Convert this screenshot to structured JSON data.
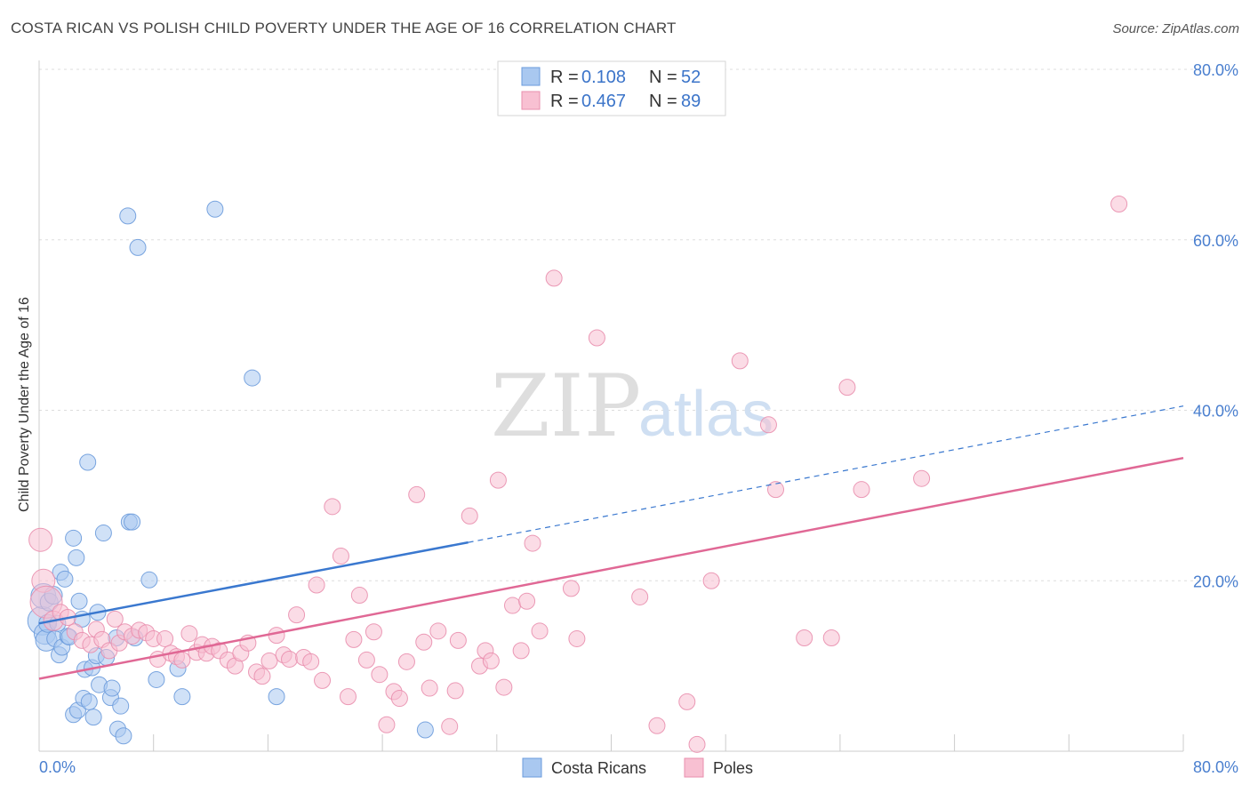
{
  "title": "COSTA RICAN VS POLISH CHILD POVERTY UNDER THE AGE OF 16 CORRELATION CHART",
  "source": "Source: ZipAtlas.com",
  "watermark": {
    "zip": "ZIP",
    "atlas": "atlas"
  },
  "legend": {
    "r_label": "R =",
    "n_label": "N =",
    "rows": [
      {
        "name": "Costa Ricans",
        "r": "0.108",
        "n": "52"
      },
      {
        "name": "Poles",
        "r": "0.467",
        "n": "89"
      }
    ]
  },
  "colors": {
    "costa_fill": "#a9c8f0",
    "costa_stroke": "#6b9bdc",
    "costa_line": "#3a78cf",
    "poles_fill": "#f8c0d2",
    "poles_stroke": "#e98fae",
    "poles_line": "#e06895",
    "axis_label": "#4a7fcf",
    "grid": "#dddddd"
  },
  "chart_data": {
    "type": "scatter",
    "title": "COSTA RICAN VS POLISH CHILD POVERTY UNDER THE AGE OF 16 CORRELATION CHART",
    "xlabel": "",
    "ylabel": "Child Poverty Under the Age of 16",
    "xlim": [
      0,
      80
    ],
    "ylim": [
      0,
      80
    ],
    "x_tick_labels": [
      "0.0%",
      "80.0%"
    ],
    "y_tick_labels": [
      {
        "value": 80,
        "label": "80.0%"
      },
      {
        "value": 60,
        "label": "60.0%"
      },
      {
        "value": 40,
        "label": "40.0%"
      },
      {
        "value": 20,
        "label": "20.0%"
      }
    ],
    "series": [
      {
        "name": "Costa Ricans",
        "r": 0.108,
        "n": 52,
        "trend": {
          "x": [
            0,
            30
          ],
          "y": [
            15.0,
            24.5
          ]
        },
        "trend_extension": {
          "x": [
            30,
            80
          ],
          "y": [
            24.5,
            40.5
          ]
        },
        "points": [
          [
            0.2,
            15.3,
            16
          ],
          [
            0.3,
            18.2,
            14
          ],
          [
            0.4,
            13.8,
            12
          ],
          [
            0.5,
            13.0,
            12
          ],
          [
            0.6,
            15.0,
            10
          ],
          [
            0.7,
            17.5,
            10
          ],
          [
            1.0,
            18.3,
            10
          ],
          [
            1.1,
            13.2,
            9
          ],
          [
            1.3,
            15.0,
            9
          ],
          [
            1.4,
            11.3,
            9
          ],
          [
            1.5,
            21.0,
            9
          ],
          [
            1.6,
            12.2,
            9
          ],
          [
            1.8,
            20.2,
            9
          ],
          [
            2.0,
            13.5,
            9
          ],
          [
            2.1,
            13.4,
            9
          ],
          [
            2.4,
            25.0,
            9
          ],
          [
            2.4,
            4.3,
            9
          ],
          [
            2.6,
            22.7,
            9
          ],
          [
            2.7,
            4.8,
            9
          ],
          [
            2.8,
            17.6,
            9
          ],
          [
            3.0,
            15.5,
            9
          ],
          [
            3.1,
            6.2,
            9
          ],
          [
            3.2,
            9.6,
            9
          ],
          [
            3.4,
            33.9,
            9
          ],
          [
            3.5,
            5.8,
            9
          ],
          [
            3.7,
            9.8,
            9
          ],
          [
            3.8,
            4.0,
            9
          ],
          [
            4.0,
            11.2,
            9
          ],
          [
            4.1,
            16.3,
            9
          ],
          [
            4.2,
            7.8,
            9
          ],
          [
            4.5,
            25.6,
            9
          ],
          [
            4.7,
            11.0,
            9
          ],
          [
            5.0,
            6.3,
            9
          ],
          [
            5.1,
            7.4,
            9
          ],
          [
            5.4,
            13.3,
            9
          ],
          [
            5.5,
            2.6,
            9
          ],
          [
            5.7,
            5.3,
            9
          ],
          [
            5.9,
            1.8,
            9
          ],
          [
            6.2,
            62.8,
            9
          ],
          [
            6.3,
            26.9,
            9
          ],
          [
            6.5,
            26.9,
            9
          ],
          [
            6.7,
            13.3,
            9
          ],
          [
            6.9,
            59.1,
            9
          ],
          [
            7.7,
            20.1,
            9
          ],
          [
            8.2,
            8.4,
            9
          ],
          [
            9.7,
            9.7,
            9
          ],
          [
            10.0,
            6.4,
            9
          ],
          [
            12.3,
            63.6,
            9
          ],
          [
            14.9,
            43.8,
            9
          ],
          [
            16.6,
            6.4,
            9
          ],
          [
            27.0,
            2.5,
            9
          ]
        ]
      },
      {
        "name": "Poles",
        "r": 0.467,
        "n": 89,
        "trend": {
          "x": [
            0,
            80
          ],
          "y": [
            8.5,
            34.4
          ]
        },
        "points": [
          [
            0.1,
            24.8,
            13
          ],
          [
            0.3,
            20.0,
            13
          ],
          [
            0.5,
            17.5,
            18
          ],
          [
            1.0,
            15.3,
            11
          ],
          [
            1.5,
            16.3,
            9
          ],
          [
            2.0,
            15.7,
            9
          ],
          [
            2.5,
            14.0,
            9
          ],
          [
            3.0,
            13.0,
            9
          ],
          [
            3.6,
            12.5,
            9
          ],
          [
            4.0,
            14.3,
            9
          ],
          [
            4.4,
            13.1,
            9
          ],
          [
            4.9,
            11.8,
            9
          ],
          [
            5.3,
            15.5,
            9
          ],
          [
            5.6,
            12.7,
            9
          ],
          [
            6.0,
            14.0,
            9
          ],
          [
            6.5,
            13.5,
            9
          ],
          [
            7.0,
            14.2,
            9
          ],
          [
            7.5,
            13.9,
            9
          ],
          [
            8.0,
            13.2,
            9
          ],
          [
            8.3,
            10.8,
            9
          ],
          [
            8.8,
            13.2,
            9
          ],
          [
            9.2,
            11.5,
            9
          ],
          [
            9.6,
            11.1,
            9
          ],
          [
            10.0,
            10.7,
            9
          ],
          [
            10.5,
            13.8,
            9
          ],
          [
            11.0,
            11.6,
            9
          ],
          [
            11.4,
            12.5,
            9
          ],
          [
            11.7,
            11.5,
            9
          ],
          [
            12.1,
            12.3,
            9
          ],
          [
            12.6,
            11.8,
            9
          ],
          [
            13.2,
            10.7,
            9
          ],
          [
            13.7,
            10.0,
            9
          ],
          [
            14.1,
            11.5,
            9
          ],
          [
            14.6,
            12.7,
            9
          ],
          [
            15.2,
            9.3,
            9
          ],
          [
            15.6,
            8.8,
            9
          ],
          [
            16.1,
            10.6,
            9
          ],
          [
            16.6,
            13.6,
            9
          ],
          [
            17.1,
            11.3,
            9
          ],
          [
            17.5,
            10.8,
            9
          ],
          [
            18.0,
            16.0,
            9
          ],
          [
            18.5,
            11.0,
            9
          ],
          [
            19.0,
            10.5,
            9
          ],
          [
            19.4,
            19.5,
            9
          ],
          [
            19.8,
            8.3,
            9
          ],
          [
            20.5,
            28.7,
            9
          ],
          [
            21.1,
            22.9,
            9
          ],
          [
            21.6,
            6.4,
            9
          ],
          [
            22.0,
            13.1,
            9
          ],
          [
            22.4,
            18.3,
            9
          ],
          [
            22.9,
            10.7,
            9
          ],
          [
            23.4,
            14.0,
            9
          ],
          [
            23.8,
            9.0,
            9
          ],
          [
            24.3,
            3.1,
            9
          ],
          [
            24.8,
            7.0,
            9
          ],
          [
            25.2,
            6.2,
            9
          ],
          [
            25.7,
            10.5,
            9
          ],
          [
            26.4,
            30.1,
            9
          ],
          [
            26.9,
            12.8,
            9
          ],
          [
            27.3,
            7.4,
            9
          ],
          [
            27.9,
            14.1,
            9
          ],
          [
            28.7,
            2.9,
            9
          ],
          [
            29.1,
            7.1,
            9
          ],
          [
            29.3,
            13.0,
            9
          ],
          [
            30.1,
            27.6,
            9
          ],
          [
            30.8,
            10.0,
            9
          ],
          [
            31.2,
            11.8,
            9
          ],
          [
            31.6,
            10.6,
            9
          ],
          [
            32.1,
            31.8,
            9
          ],
          [
            32.5,
            7.5,
            9
          ],
          [
            33.1,
            17.1,
            9
          ],
          [
            33.7,
            11.8,
            9
          ],
          [
            34.1,
            17.6,
            9
          ],
          [
            34.5,
            24.4,
            9
          ],
          [
            35.0,
            14.1,
            9
          ],
          [
            36.0,
            55.5,
            9
          ],
          [
            37.2,
            19.1,
            9
          ],
          [
            37.6,
            13.2,
            9
          ],
          [
            39.0,
            48.5,
            9
          ],
          [
            42.0,
            18.1,
            9
          ],
          [
            43.2,
            3.0,
            9
          ],
          [
            45.3,
            5.8,
            9
          ],
          [
            46.0,
            0.8,
            9
          ],
          [
            47.0,
            20.0,
            9
          ],
          [
            49.0,
            45.8,
            9
          ],
          [
            51.0,
            38.3,
            9
          ],
          [
            51.5,
            30.7,
            9
          ],
          [
            53.5,
            13.3,
            9
          ],
          [
            55.4,
            13.3,
            9
          ],
          [
            56.5,
            42.7,
            9
          ],
          [
            57.5,
            30.7,
            9
          ],
          [
            61.7,
            32.0,
            9
          ],
          [
            75.5,
            64.2,
            9
          ]
        ]
      }
    ]
  }
}
